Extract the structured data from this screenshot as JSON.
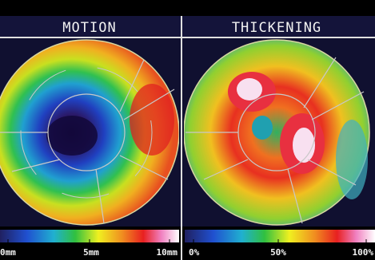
{
  "panels": [
    {
      "title": "MOTION",
      "scale_labels": [
        "0mm",
        "5mm",
        "10mm"
      ]
    },
    {
      "title": "THICKENING",
      "scale_labels": [
        "0%",
        "50%",
        "100%"
      ]
    }
  ]
}
